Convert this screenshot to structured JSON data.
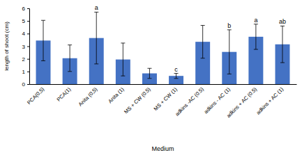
{
  "chart_data": {
    "type": "bar",
    "x_label": "Medium",
    "y_label": "length of shoot (cm)",
    "categories": [
      "PCA(0,5)",
      "PCA(1)",
      "Anita (0,5)",
      "Anita (1)",
      "MS + CW (0.5)",
      "MS + CW (1)",
      "adkins -AC (0.5)",
      "adkins - AC (1)",
      "adkins + AC (0.5)",
      "adkins + AC (1)"
    ],
    "values": [
      3.45,
      2.05,
      3.65,
      1.95,
      0.85,
      0.65,
      3.35,
      2.55,
      3.75,
      3.15
    ],
    "errors": [
      1.6,
      1.05,
      2.05,
      1.3,
      0.4,
      0.2,
      1.3,
      1.75,
      1.0,
      1.45
    ],
    "annotations": [
      null,
      null,
      "a",
      null,
      null,
      "c",
      null,
      "b",
      "a",
      "ab"
    ],
    "color": "#4472c4",
    "ylim": [
      0,
      6
    ],
    "yticks": [
      0,
      1,
      2,
      3,
      4,
      5,
      6
    ],
    "grid": false
  }
}
